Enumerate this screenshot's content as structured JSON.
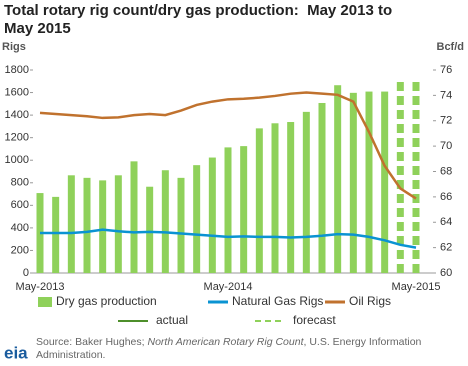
{
  "chart_data": {
    "type": "bar-line",
    "title": "Total rotary rig count/dry gas production:  May 2013 to May 2015",
    "ylabel": "Rigs",
    "y2label": "Bcf/d",
    "categories": [
      "May-2013",
      null,
      null,
      null,
      null,
      null,
      null,
      null,
      null,
      null,
      null,
      null,
      "May-2014",
      null,
      null,
      null,
      null,
      null,
      null,
      null,
      null,
      null,
      null,
      null,
      "May-2015"
    ],
    "ylim": [
      0,
      1800
    ],
    "yticks": [
      0,
      200,
      400,
      600,
      800,
      1000,
      1200,
      1400,
      1600,
      1800
    ],
    "y2lim": [
      60,
      76
    ],
    "y2ticks": [
      60,
      62,
      64,
      66,
      68,
      70,
      72,
      74,
      76
    ],
    "series": [
      {
        "name": "Dry gas production",
        "type": "bar",
        "axis": "y2",
        "color": "#8fd15a",
        "values": [
          66.3,
          66.0,
          67.7,
          67.5,
          67.3,
          67.7,
          68.8,
          66.8,
          68.1,
          67.5,
          68.5,
          69.1,
          69.9,
          70.0,
          71.4,
          71.8,
          71.9,
          72.7,
          73.4,
          74.8,
          74.2,
          74.3,
          74.3,
          75.1,
          75.2
        ],
        "styles": [
          "solid",
          "solid",
          "solid",
          "solid",
          "solid",
          "solid",
          "solid",
          "solid",
          "solid",
          "solid",
          "solid",
          "solid",
          "solid",
          "solid",
          "solid",
          "solid",
          "solid",
          "solid",
          "solid",
          "solid",
          "solid",
          "solid",
          "solid",
          "dashed",
          "dashed"
        ]
      },
      {
        "name": "Natural Gas Rigs",
        "type": "line",
        "color": "#0a93d2",
        "values": [
          355,
          355,
          355,
          365,
          385,
          370,
          360,
          365,
          360,
          350,
          340,
          330,
          320,
          325,
          320,
          320,
          315,
          320,
          330,
          345,
          340,
          320,
          290,
          250,
          225
        ]
      },
      {
        "name": "Oil Rigs",
        "type": "line",
        "color": "#c0722e",
        "values": [
          1420,
          1410,
          1400,
          1390,
          1375,
          1380,
          1400,
          1410,
          1400,
          1440,
          1490,
          1520,
          1540,
          1545,
          1555,
          1570,
          1590,
          1600,
          1590,
          1580,
          1520,
          1250,
          950,
          750,
          660
        ]
      }
    ],
    "line_styles": [
      {
        "name": "actual",
        "color": "#4e8f2b",
        "style": "solid"
      },
      {
        "name": "forecast",
        "color": "#8fd15a",
        "style": "dashed"
      }
    ]
  },
  "source": {
    "prefix": "Source:  Baker Hughes; ",
    "italic": "North American Rotary Rig Count",
    "suffix": ", U.S. Energy Information Administration."
  },
  "logo": "eia"
}
